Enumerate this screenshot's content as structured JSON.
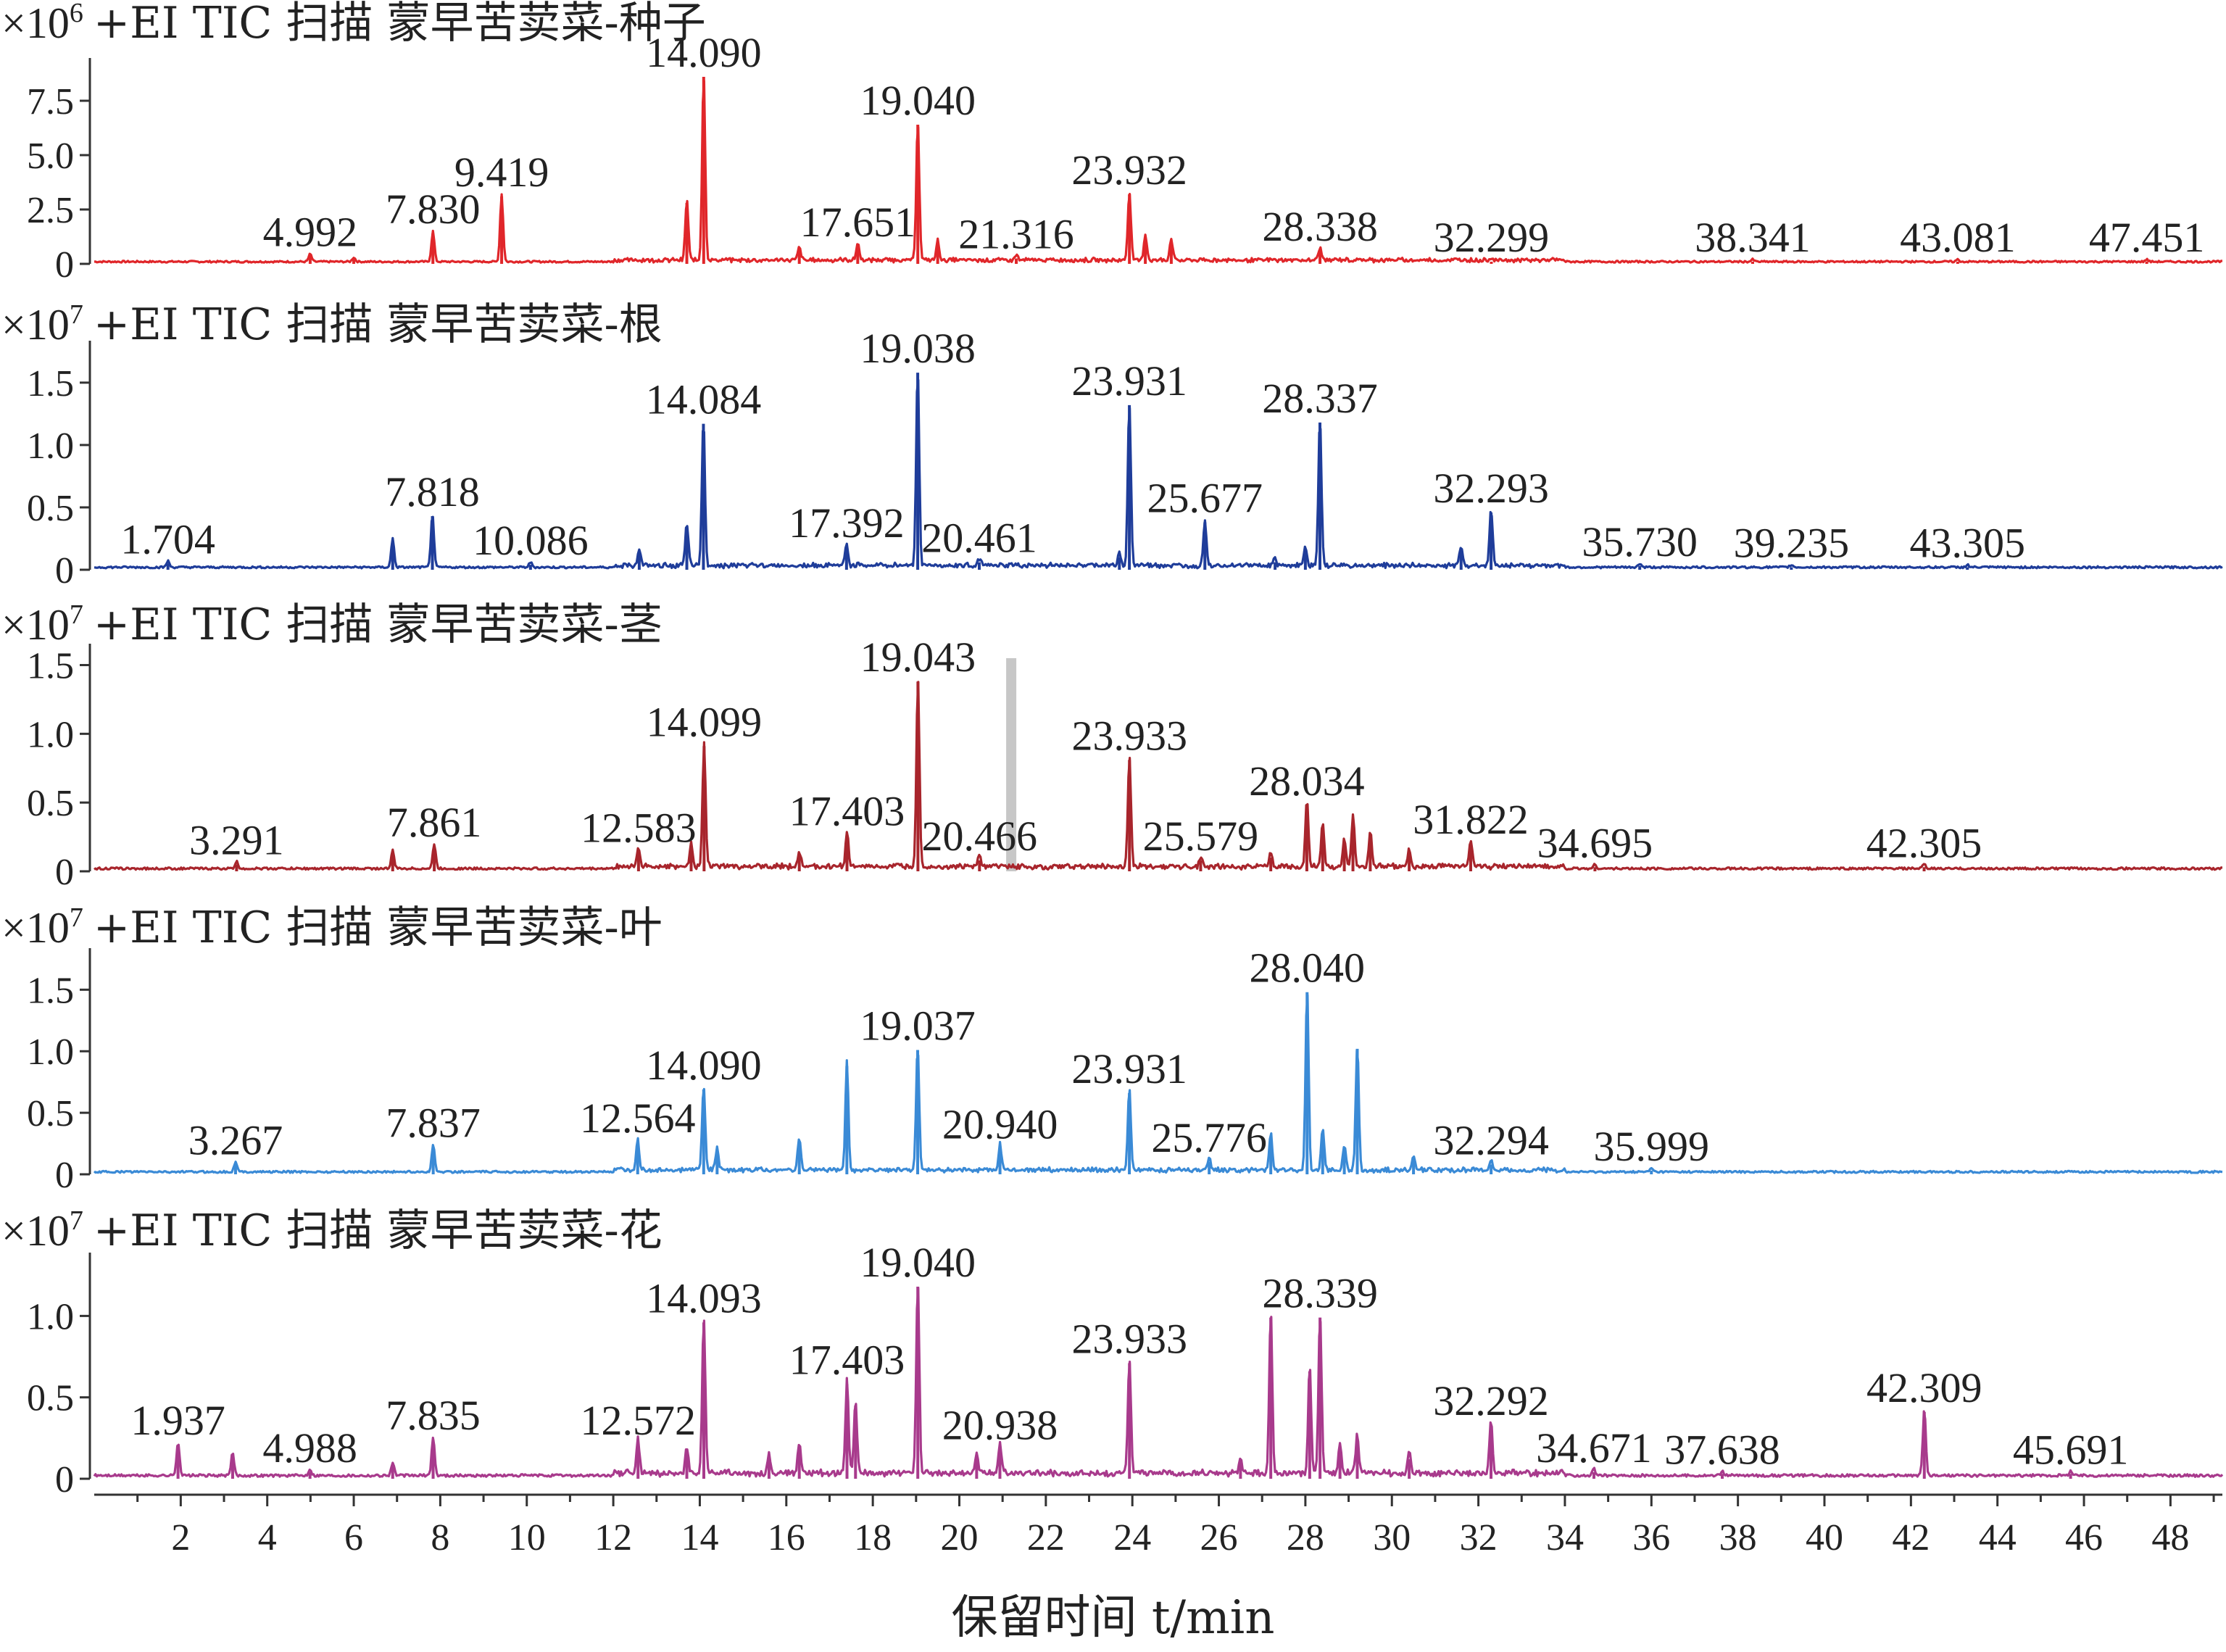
{
  "chart_data": {
    "type": "line",
    "xlabel": "保留时间 t/min",
    "xlim": [
      0,
      49.2
    ],
    "xticks": [
      2,
      4,
      6,
      8,
      10,
      12,
      14,
      16,
      18,
      20,
      22,
      24,
      26,
      28,
      30,
      32,
      34,
      36,
      38,
      40,
      42,
      44,
      46,
      48
    ],
    "panels": [
      {
        "title": "+EI TIC 扫描 蒙早苦荬菜-种子",
        "multiplier": "×10",
        "exponent": "6",
        "color": "#e0262a",
        "ylim": [
          0,
          8.8
        ],
        "yticks": [
          "0",
          "2.5",
          "5.0",
          "7.5"
        ],
        "ytick_values": [
          0,
          2.5,
          5.0,
          7.5
        ],
        "baseline": 0.1,
        "peaks": [
          {
            "rt": 4.992,
            "label": "4.992",
            "y": 0.35
          },
          {
            "rt": 6.0,
            "label": "",
            "y": 0.2
          },
          {
            "rt": 7.83,
            "label": "7.830",
            "y": 1.4
          },
          {
            "rt": 9.419,
            "label": "9.419",
            "y": 3.1
          },
          {
            "rt": 13.7,
            "label": "",
            "y": 2.8
          },
          {
            "rt": 14.09,
            "label": "14.090",
            "y": 8.6
          },
          {
            "rt": 16.3,
            "label": "",
            "y": 0.6
          },
          {
            "rt": 17.651,
            "label": "17.651",
            "y": 0.8
          },
          {
            "rt": 19.04,
            "label": "19.040",
            "y": 6.4
          },
          {
            "rt": 19.5,
            "label": "",
            "y": 0.9
          },
          {
            "rt": 21.316,
            "label": "21.316",
            "y": 0.25
          },
          {
            "rt": 23.932,
            "label": "23.932",
            "y": 3.2
          },
          {
            "rt": 24.3,
            "label": "",
            "y": 1.2
          },
          {
            "rt": 24.9,
            "label": "",
            "y": 1.0
          },
          {
            "rt": 28.338,
            "label": "28.338",
            "y": 0.6
          },
          {
            "rt": 32.299,
            "label": "32.299",
            "y": 0.1
          },
          {
            "rt": 38.341,
            "label": "38.341",
            "y": 0.1
          },
          {
            "rt": 43.081,
            "label": "43.081",
            "y": 0.1
          },
          {
            "rt": 47.451,
            "label": "47.451",
            "y": 0.1
          }
        ]
      },
      {
        "title": "+EI TIC 扫描 蒙早苦荬菜-根",
        "multiplier": "×10",
        "exponent": "7",
        "color": "#1f3d9a",
        "ylim": [
          0,
          1.72
        ],
        "yticks": [
          "0",
          "0.5",
          "1.0",
          "1.5"
        ],
        "ytick_values": [
          0,
          0.5,
          1.0,
          1.5
        ],
        "baseline": 0.02,
        "peaks": [
          {
            "rt": 1.704,
            "label": "1.704",
            "y": 0.05
          },
          {
            "rt": 6.9,
            "label": "",
            "y": 0.23
          },
          {
            "rt": 7.818,
            "label": "7.818",
            "y": 0.43
          },
          {
            "rt": 10.086,
            "label": "10.086",
            "y": 0.04
          },
          {
            "rt": 12.6,
            "label": "",
            "y": 0.14
          },
          {
            "rt": 13.7,
            "label": "",
            "y": 0.34
          },
          {
            "rt": 14.084,
            "label": "14.084",
            "y": 1.17
          },
          {
            "rt": 17.392,
            "label": "17.392",
            "y": 0.18
          },
          {
            "rt": 19.038,
            "label": "19.038",
            "y": 1.58
          },
          {
            "rt": 20.461,
            "label": "20.461",
            "y": 0.06
          },
          {
            "rt": 23.7,
            "label": "",
            "y": 0.1
          },
          {
            "rt": 23.931,
            "label": "23.931",
            "y": 1.32
          },
          {
            "rt": 25.677,
            "label": "25.677",
            "y": 0.38
          },
          {
            "rt": 27.3,
            "label": "",
            "y": 0.06
          },
          {
            "rt": 28.0,
            "label": "",
            "y": 0.15
          },
          {
            "rt": 28.337,
            "label": "28.337",
            "y": 1.18
          },
          {
            "rt": 31.6,
            "label": "",
            "y": 0.15
          },
          {
            "rt": 32.293,
            "label": "32.293",
            "y": 0.46
          },
          {
            "rt": 35.73,
            "label": "35.730",
            "y": 0.03
          },
          {
            "rt": 39.235,
            "label": "39.235",
            "y": 0.02
          },
          {
            "rt": 43.305,
            "label": "43.305",
            "y": 0.02
          }
        ]
      },
      {
        "title": "+EI TIC 扫描 蒙早苦荬菜-茎",
        "multiplier": "×10",
        "exponent": "7",
        "color": "#a8252c",
        "ylim": [
          0,
          1.55
        ],
        "yticks": [
          "0",
          "0.5",
          "1.0",
          "1.5"
        ],
        "ytick_values": [
          0,
          0.5,
          1.0,
          1.5
        ],
        "baseline": 0.02,
        "highlight_rt": 21.2,
        "peaks": [
          {
            "rt": 3.291,
            "label": "3.291",
            "y": 0.05
          },
          {
            "rt": 6.9,
            "label": "",
            "y": 0.13
          },
          {
            "rt": 7.861,
            "label": "7.861",
            "y": 0.18
          },
          {
            "rt": 12.583,
            "label": "12.583",
            "y": 0.14
          },
          {
            "rt": 13.8,
            "label": "",
            "y": 0.18
          },
          {
            "rt": 14.099,
            "label": "14.099",
            "y": 0.91
          },
          {
            "rt": 16.3,
            "label": "",
            "y": 0.12
          },
          {
            "rt": 17.403,
            "label": "17.403",
            "y": 0.26
          },
          {
            "rt": 19.043,
            "label": "19.043",
            "y": 1.38
          },
          {
            "rt": 20.466,
            "label": "20.466",
            "y": 0.08
          },
          {
            "rt": 23.933,
            "label": "23.933",
            "y": 0.81
          },
          {
            "rt": 25.579,
            "label": "25.579",
            "y": 0.08
          },
          {
            "rt": 27.2,
            "label": "",
            "y": 0.1
          },
          {
            "rt": 28.034,
            "label": "28.034",
            "y": 0.48
          },
          {
            "rt": 28.4,
            "label": "",
            "y": 0.32
          },
          {
            "rt": 28.9,
            "label": "",
            "y": 0.2
          },
          {
            "rt": 29.1,
            "label": "",
            "y": 0.38
          },
          {
            "rt": 29.5,
            "label": "",
            "y": 0.26
          },
          {
            "rt": 30.4,
            "label": "",
            "y": 0.12
          },
          {
            "rt": 31.822,
            "label": "31.822",
            "y": 0.2
          },
          {
            "rt": 34.695,
            "label": "34.695",
            "y": 0.03
          },
          {
            "rt": 42.305,
            "label": "42.305",
            "y": 0.03
          }
        ]
      },
      {
        "title": "+EI TIC 扫描 蒙早苦荬菜-叶",
        "multiplier": "×10",
        "exponent": "7",
        "color": "#3a8ad6",
        "ylim": [
          0,
          1.72
        ],
        "yticks": [
          "0",
          "0.5",
          "1.0",
          "1.5"
        ],
        "ytick_values": [
          0,
          0.5,
          1.0,
          1.5
        ],
        "baseline": 0.02,
        "peaks": [
          {
            "rt": 3.267,
            "label": "3.267",
            "y": 0.08
          },
          {
            "rt": 7.837,
            "label": "7.837",
            "y": 0.22
          },
          {
            "rt": 12.564,
            "label": "12.564",
            "y": 0.26
          },
          {
            "rt": 14.09,
            "label": "14.090",
            "y": 0.69
          },
          {
            "rt": 14.4,
            "label": "",
            "y": 0.18
          },
          {
            "rt": 16.3,
            "label": "",
            "y": 0.26
          },
          {
            "rt": 17.4,
            "label": "",
            "y": 0.88
          },
          {
            "rt": 19.037,
            "label": "19.037",
            "y": 1.01
          },
          {
            "rt": 20.94,
            "label": "20.940",
            "y": 0.21
          },
          {
            "rt": 23.931,
            "label": "23.931",
            "y": 0.66
          },
          {
            "rt": 25.776,
            "label": "25.776",
            "y": 0.1
          },
          {
            "rt": 27.2,
            "label": "",
            "y": 0.3
          },
          {
            "rt": 28.04,
            "label": "28.040",
            "y": 1.48
          },
          {
            "rt": 28.4,
            "label": "",
            "y": 0.35
          },
          {
            "rt": 28.9,
            "label": "",
            "y": 0.2
          },
          {
            "rt": 29.2,
            "label": "",
            "y": 1.02
          },
          {
            "rt": 30.5,
            "label": "",
            "y": 0.12
          },
          {
            "rt": 32.294,
            "label": "32.294",
            "y": 0.08
          },
          {
            "rt": 35.999,
            "label": "35.999",
            "y": 0.03
          }
        ]
      },
      {
        "title": "+EI TIC 扫描 蒙早苦荬菜-花",
        "multiplier": "×10",
        "exponent": "7",
        "color": "#a83a8c",
        "ylim": [
          0,
          1.3
        ],
        "yticks": [
          "0",
          "0.5",
          "1.0"
        ],
        "ytick_values": [
          0,
          0.5,
          1.0
        ],
        "baseline": 0.02,
        "peaks": [
          {
            "rt": 1.937,
            "label": "1.937",
            "y": 0.21
          },
          {
            "rt": 3.2,
            "label": "",
            "y": 0.14
          },
          {
            "rt": 4.988,
            "label": "4.988",
            "y": 0.04
          },
          {
            "rt": 6.9,
            "label": "",
            "y": 0.08
          },
          {
            "rt": 7.835,
            "label": "7.835",
            "y": 0.24
          },
          {
            "rt": 12.572,
            "label": "12.572",
            "y": 0.21
          },
          {
            "rt": 13.7,
            "label": "",
            "y": 0.16
          },
          {
            "rt": 14.093,
            "label": "14.093",
            "y": 0.96
          },
          {
            "rt": 15.6,
            "label": "",
            "y": 0.12
          },
          {
            "rt": 16.3,
            "label": "",
            "y": 0.18
          },
          {
            "rt": 17.403,
            "label": "17.403",
            "y": 0.58
          },
          {
            "rt": 17.6,
            "label": "",
            "y": 0.45
          },
          {
            "rt": 19.04,
            "label": "19.040",
            "y": 1.18
          },
          {
            "rt": 20.4,
            "label": "",
            "y": 0.12
          },
          {
            "rt": 20.938,
            "label": "20.938",
            "y": 0.18
          },
          {
            "rt": 23.933,
            "label": "23.933",
            "y": 0.71
          },
          {
            "rt": 26.5,
            "label": "",
            "y": 0.1
          },
          {
            "rt": 27.2,
            "label": "",
            "y": 0.99
          },
          {
            "rt": 28.1,
            "label": "",
            "y": 0.66
          },
          {
            "rt": 28.339,
            "label": "28.339",
            "y": 0.99
          },
          {
            "rt": 28.8,
            "label": "",
            "y": 0.18
          },
          {
            "rt": 29.2,
            "label": "",
            "y": 0.24
          },
          {
            "rt": 30.4,
            "label": "",
            "y": 0.12
          },
          {
            "rt": 32.292,
            "label": "32.292",
            "y": 0.33
          },
          {
            "rt": 34.671,
            "label": "34.671",
            "y": 0.04
          },
          {
            "rt": 37.638,
            "label": "37.638",
            "y": 0.03
          },
          {
            "rt": 42.309,
            "label": "42.309",
            "y": 0.41
          },
          {
            "rt": 45.691,
            "label": "45.691",
            "y": 0.03
          }
        ]
      }
    ]
  }
}
